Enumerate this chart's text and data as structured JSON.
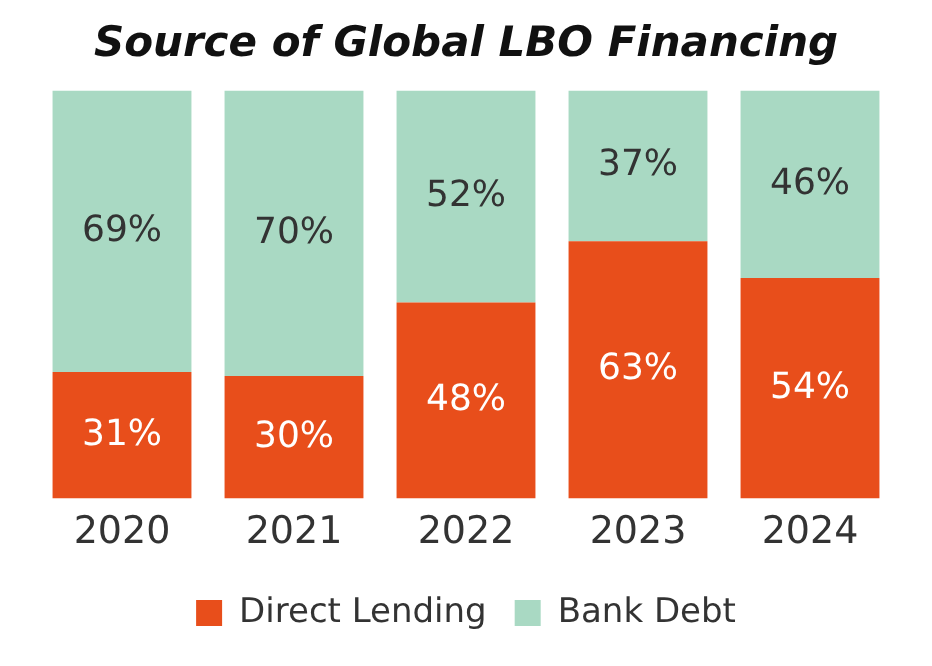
{
  "chart_data": {
    "type": "bar",
    "title": "Source of Global LBO Financing",
    "categories": [
      "2020",
      "2021",
      "2022",
      "2023",
      "2024"
    ],
    "stacked": true,
    "legend": "bottom",
    "grid": false,
    "tick_labels": "x",
    "series": [
      {
        "name": "Direct Lending",
        "color": "#e84e1b",
        "values": [
          31,
          30,
          48,
          63,
          54
        ],
        "value_labels": [
          "31%",
          "30%",
          "48%",
          "63%",
          "54%"
        ]
      },
      {
        "name": "Bank Debt",
        "color": "#a9d9c3",
        "values": [
          69,
          70,
          52,
          37,
          46
        ],
        "value_labels": [
          "69%",
          "70%",
          "52%",
          "37%",
          "46%"
        ]
      }
    ]
  }
}
